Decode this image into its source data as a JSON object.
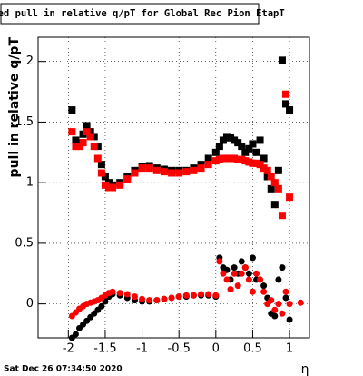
{
  "chart_data": {
    "type": "scatter",
    "title": "Fitted pull in relative q/pT for Global Rec Pion EtapT",
    "y_label": "pull in relative q/pT",
    "x_label": "η",
    "timestamp": "Sat Dec 26 07:34:50 2020",
    "xlim": [
      -2.41,
      1.27
    ],
    "ylim": [
      -0.28,
      2.2
    ],
    "xticks": [
      -2,
      -1.5,
      -1,
      -0.5,
      0,
      0.5,
      1
    ],
    "yticks": [
      0,
      0.5,
      1,
      1.5,
      2
    ],
    "grid": true,
    "x": [
      -1.95,
      -1.9,
      -1.85,
      -1.8,
      -1.75,
      -1.7,
      -1.65,
      -1.6,
      -1.55,
      -1.5,
      -1.45,
      -1.4,
      -1.3,
      -1.2,
      -1.1,
      -1.0,
      -0.9,
      -0.8,
      -0.7,
      -0.6,
      -0.5,
      -0.4,
      -0.3,
      -0.2,
      -0.1,
      0,
      0.05,
      0.1,
      0.15,
      0.2,
      0.25,
      0.3,
      0.35,
      0.4,
      0.45,
      0.5,
      0.55,
      0.6,
      0.65,
      0.7,
      0.75,
      0.8,
      0.85,
      0.9,
      0.95,
      1.0,
      1.05,
      1.1,
      1.15
    ],
    "series": [
      {
        "color": "#000000",
        "marker": "square",
        "values": [
          1.6,
          1.35,
          1.33,
          1.4,
          1.47,
          1.42,
          1.38,
          1.3,
          1.15,
          1.05,
          1.0,
          0.98,
          1.0,
          1.05,
          1.1,
          1.13,
          1.14,
          1.12,
          1.11,
          1.1,
          1.1,
          1.1,
          1.12,
          1.15,
          1.2,
          1.25,
          1.3,
          1.35,
          1.38,
          1.37,
          1.35,
          1.33,
          1.3,
          1.25,
          1.28,
          1.32,
          1.25,
          1.35,
          1.2,
          1.05,
          0.95,
          0.82,
          1.1,
          2.01,
          1.65,
          1.6,
          null,
          null,
          null
        ]
      },
      {
        "color": "#ff0000",
        "marker": "square",
        "values": [
          1.42,
          1.3,
          1.3,
          1.33,
          1.42,
          1.38,
          1.3,
          1.2,
          1.08,
          0.98,
          0.96,
          0.96,
          0.98,
          1.03,
          1.08,
          1.12,
          1.12,
          1.1,
          1.09,
          1.08,
          1.08,
          1.09,
          1.1,
          1.12,
          1.15,
          1.18,
          1.19,
          1.2,
          1.2,
          1.2,
          1.2,
          1.19,
          1.19,
          1.18,
          1.17,
          1.16,
          1.16,
          1.15,
          1.12,
          1.1,
          1.05,
          1.0,
          0.95,
          0.73,
          1.73,
          0.88,
          null,
          null,
          null
        ]
      },
      {
        "color": "#000000",
        "marker": "circle",
        "values": [
          -0.28,
          -0.25,
          -0.2,
          -0.17,
          -0.14,
          -0.11,
          -0.08,
          -0.05,
          -0.02,
          0.02,
          0.06,
          0.08,
          0.07,
          0.05,
          0.03,
          0.02,
          0.02,
          0.03,
          0.04,
          0.05,
          0.06,
          0.06,
          0.07,
          0.07,
          0.07,
          0.06,
          0.38,
          0.3,
          0.28,
          0.2,
          0.3,
          0.25,
          0.35,
          0.3,
          0.25,
          0.38,
          0.2,
          0.2,
          0.15,
          0.05,
          -0.08,
          -0.1,
          0.2,
          0.3,
          0.05,
          -0.13,
          null,
          null,
          null
        ]
      },
      {
        "color": "#ff0000",
        "marker": "circle",
        "values": [
          -0.1,
          -0.07,
          -0.04,
          -0.02,
          0,
          0.01,
          0.02,
          0.03,
          0.05,
          0.07,
          0.09,
          0.1,
          0.09,
          0.08,
          0.06,
          0.04,
          0.03,
          0.03,
          0.04,
          0.05,
          0.06,
          0.07,
          0.07,
          0.08,
          0.08,
          0.07,
          0.35,
          0.25,
          0.2,
          0.12,
          0.25,
          0.15,
          0.25,
          0.3,
          0.2,
          0.1,
          0.25,
          0.2,
          0.1,
          0,
          0.03,
          -0.05,
          0,
          -0.08,
          0.1,
          0,
          null,
          null,
          0.01
        ]
      }
    ]
  }
}
